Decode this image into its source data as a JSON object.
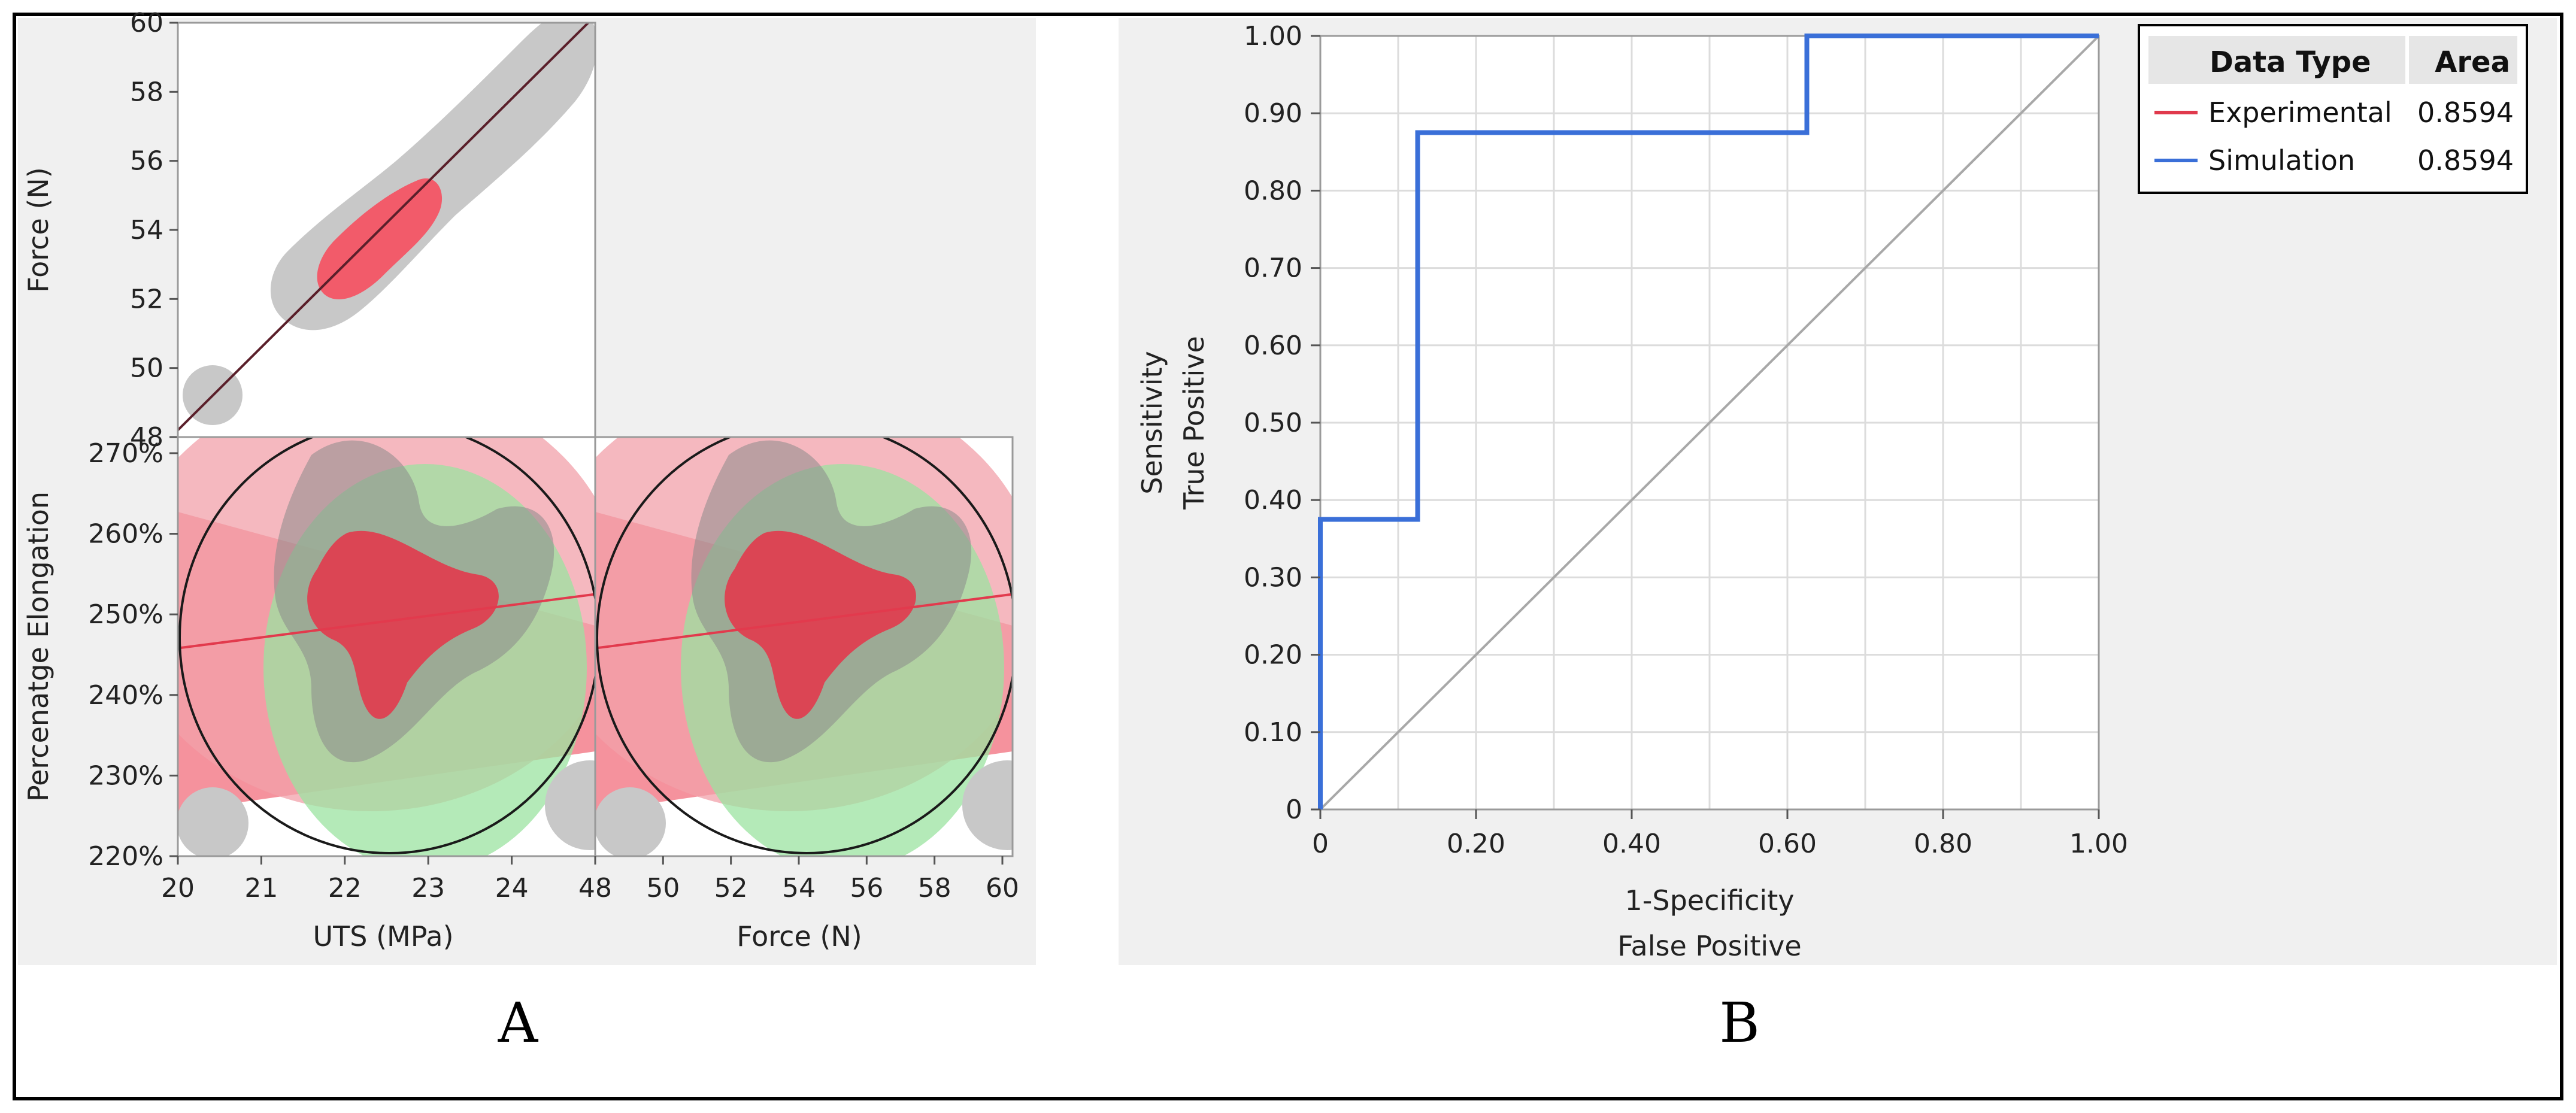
{
  "panel_letters": {
    "a": "A",
    "b": "B"
  },
  "chart_data": [
    {
      "type": "scatter",
      "title": "",
      "subplots": [
        {
          "id": "force-vs-uts",
          "xlabel": "",
          "ylabel": "Force (N)",
          "xlim": [
            20,
            25
          ],
          "ylim": [
            48,
            60
          ],
          "y_ticks": [
            "48",
            "50",
            "52",
            "54",
            "56",
            "58",
            "60"
          ],
          "fit_line": {
            "x": [
              20,
              25
            ],
            "y": [
              48.2,
              60.2
            ]
          },
          "density": {
            "core_color": "#f25b6a",
            "outer_color": "#c8c8c8"
          }
        },
        {
          "id": "elongation-vs-uts",
          "xlabel": "UTS (MPa)",
          "ylabel": "Percenatge Elongation",
          "xlim": [
            20,
            25
          ],
          "ylim": [
            220,
            272
          ],
          "x_ticks": [
            "20",
            "21",
            "22",
            "23",
            "24"
          ],
          "y_ticks": [
            "220%",
            "230%",
            "240%",
            "250%",
            "260%",
            "270%"
          ],
          "fit_line": {
            "x": [
              20,
              25
            ],
            "y": [
              245.8,
              252.5
            ]
          },
          "ellipse_colors": [
            "#f08a95",
            "#9be3a0"
          ]
        },
        {
          "id": "elongation-vs-force",
          "xlabel": "Force (N)",
          "ylabel": "",
          "xlim": [
            48,
            60.3
          ],
          "ylim": [
            220,
            272
          ],
          "x_ticks": [
            "48",
            "50",
            "52",
            "54",
            "56",
            "58",
            "60"
          ],
          "fit_line": {
            "x": [
              48,
              60.3
            ],
            "y": [
              245.8,
              252.5
            ]
          },
          "ellipse_colors": [
            "#f08a95",
            "#9be3a0"
          ]
        }
      ]
    },
    {
      "type": "line",
      "title": "",
      "xlabel": "1-Specificity",
      "xlabel2": "False Positive",
      "ylabel": "Sensitivity",
      "ylabel2": "True Positive",
      "xlim": [
        0,
        1
      ],
      "ylim": [
        0,
        1
      ],
      "x_ticks": [
        "0",
        "0.20",
        "0.40",
        "0.60",
        "0.80",
        "1.00"
      ],
      "y_ticks": [
        "0",
        "0.10",
        "0.20",
        "0.30",
        "0.40",
        "0.50",
        "0.60",
        "0.70",
        "0.80",
        "0.90",
        "1.00"
      ],
      "series": [
        {
          "name": "Experimental",
          "color": "#e0394c",
          "area": "0.8594",
          "x": [
            0,
            0,
            0.125,
            0.125,
            0.625,
            0.625,
            1
          ],
          "y": [
            0,
            0.375,
            0.375,
            0.875,
            0.875,
            1,
            1
          ]
        },
        {
          "name": "Simulation",
          "color": "#3a6fd8",
          "area": "0.8594",
          "x": [
            0,
            0,
            0.125,
            0.125,
            0.625,
            0.625,
            1
          ],
          "y": [
            0,
            0.375,
            0.375,
            0.875,
            0.875,
            1,
            1
          ]
        }
      ],
      "reference_line": {
        "x": [
          0,
          1
        ],
        "y": [
          0,
          1
        ]
      },
      "legend": {
        "header_type": "Data Type",
        "header_area": "Area",
        "position": "top-right"
      }
    }
  ]
}
